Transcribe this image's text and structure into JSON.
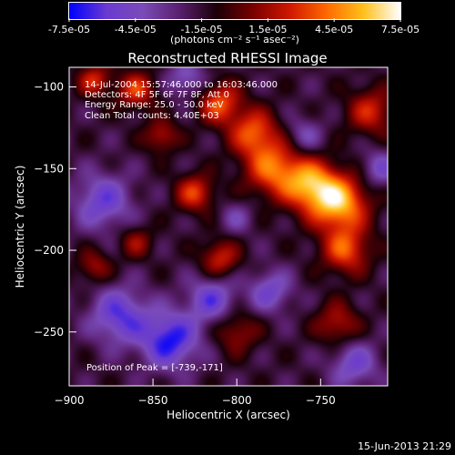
{
  "chart_data": {
    "type": "heatmap",
    "title": "Reconstructed RHESSI Image",
    "xlabel": "Heliocentric X (arcsec)",
    "ylabel": "Heliocentric Y (arcsec)",
    "xlim": [
      -900,
      -710
    ],
    "ylim": [
      -283,
      -88
    ],
    "xticks": [
      -900,
      -850,
      -800,
      -750
    ],
    "yticks": [
      -100,
      -150,
      -200,
      -250
    ],
    "colorbar": {
      "min": -7.5e-05,
      "max": 7.5e-05,
      "tick_labels": [
        "-7.5e-05",
        "-4.5e-05",
        "-1.5e-05",
        "1.5e-05",
        "4.5e-05",
        "7.5e-05"
      ],
      "unit_label": "(photons cm⁻² s⁻¹ asec⁻²)",
      "palette": [
        "#0000ff",
        "#6a3bd0",
        "#7a4bb8",
        "#5a1f6e",
        "#1a0008",
        "#7a0000",
        "#d01800",
        "#ff6a00",
        "#ffc01a",
        "#ffffff"
      ]
    },
    "annotations": [
      "14-Jul-2004 15:57:46.000 to 16:03:46.000",
      "Detectors: 4F 5F 6F 7F 8F, Att 0",
      "Energy Range: 25.0 - 50.0 keV",
      "Clean     Total counts: 4.40E+03"
    ],
    "peak_label": "Position of Peak = [-739,-171]",
    "peak": [
      -739,
      -171
    ],
    "sources": [
      {
        "x": -739,
        "y": -171,
        "amp": 7.2e-05,
        "sigma": 12
      },
      {
        "x": -756,
        "y": -160,
        "amp": 6e-05,
        "sigma": 11
      },
      {
        "x": -735,
        "y": -200,
        "amp": 5e-05,
        "sigma": 10
      },
      {
        "x": -778,
        "y": -150,
        "amp": 5.5e-05,
        "sigma": 12
      },
      {
        "x": -790,
        "y": -128,
        "amp": 5e-05,
        "sigma": 10
      },
      {
        "x": -810,
        "y": -110,
        "amp": 5e-05,
        "sigma": 9
      },
      {
        "x": -825,
        "y": -165,
        "amp": 4.6e-05,
        "sigma": 8
      },
      {
        "x": -860,
        "y": -102,
        "amp": 4.5e-05,
        "sigma": 8
      },
      {
        "x": -885,
        "y": -96,
        "amp": 4e-05,
        "sigma": 7
      },
      {
        "x": -845,
        "y": -130,
        "amp": 3.5e-05,
        "sigma": 7
      },
      {
        "x": -810,
        "y": -205,
        "amp": 4e-05,
        "sigma": 8
      },
      {
        "x": -720,
        "y": -115,
        "amp": 4e-05,
        "sigma": 10
      },
      {
        "x": -740,
        "y": -245,
        "amp": 3.5e-05,
        "sigma": 9
      },
      {
        "x": -800,
        "y": -250,
        "amp": 3e-05,
        "sigma": 9
      },
      {
        "x": -885,
        "y": -210,
        "amp": 3e-05,
        "sigma": 7
      },
      {
        "x": -860,
        "y": -195,
        "amp": 2.8e-05,
        "sigma": 7
      },
      {
        "x": -840,
        "y": -255,
        "amp": -5.5e-05,
        "sigma": 12
      },
      {
        "x": -870,
        "y": -240,
        "amp": -4.5e-05,
        "sigma": 12
      },
      {
        "x": -815,
        "y": -230,
        "amp": -4e-05,
        "sigma": 10
      },
      {
        "x": -880,
        "y": -170,
        "amp": -4e-05,
        "sigma": 12
      },
      {
        "x": -780,
        "y": -225,
        "amp": -3.5e-05,
        "sigma": 9
      },
      {
        "x": -730,
        "y": -270,
        "amp": -3.5e-05,
        "sigma": 10
      },
      {
        "x": -760,
        "y": -130,
        "amp": -2.5e-05,
        "sigma": 8
      },
      {
        "x": -830,
        "y": -95,
        "amp": -3e-05,
        "sigma": 8
      },
      {
        "x": -715,
        "y": -150,
        "amp": -3e-05,
        "sigma": 8
      },
      {
        "x": -800,
        "y": -180,
        "amp": -2e-05,
        "sigma": 7
      }
    ]
  },
  "footer": {
    "timestamp": "15-Jun-2013 21:29"
  }
}
